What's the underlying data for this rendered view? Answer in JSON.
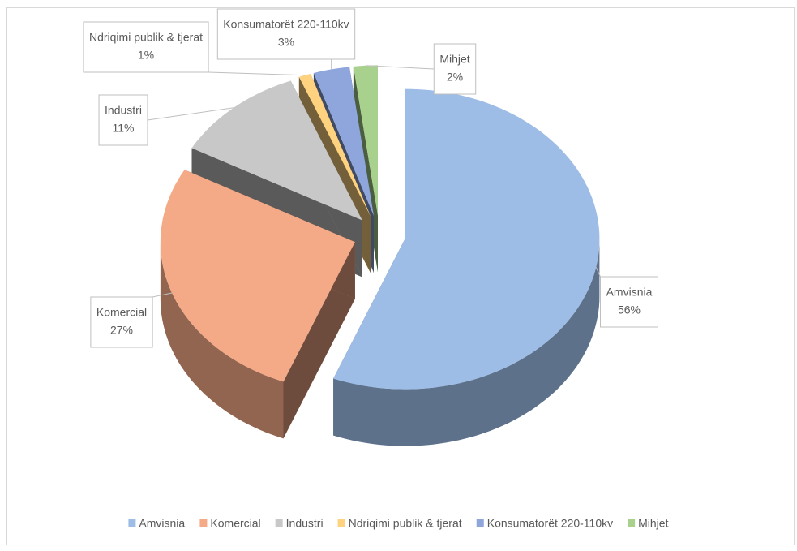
{
  "chart_data": {
    "type": "pie",
    "categories": [
      "Amvisnia",
      "Komercial",
      "Industri",
      "Ndriqimi publik & tjerat",
      "Konsumatorët 220-110kv",
      "Mihjet"
    ],
    "values": [
      56,
      27,
      11,
      1,
      3,
      2
    ],
    "value_labels": [
      "56%",
      "27%",
      "11%",
      "1%",
      "3%",
      "2%"
    ],
    "colors": [
      "#9dbde6",
      "#f4a987",
      "#c8c8c8",
      "#ffd27f",
      "#8fa6dc",
      "#a9d18e"
    ],
    "legend": "bottom"
  }
}
